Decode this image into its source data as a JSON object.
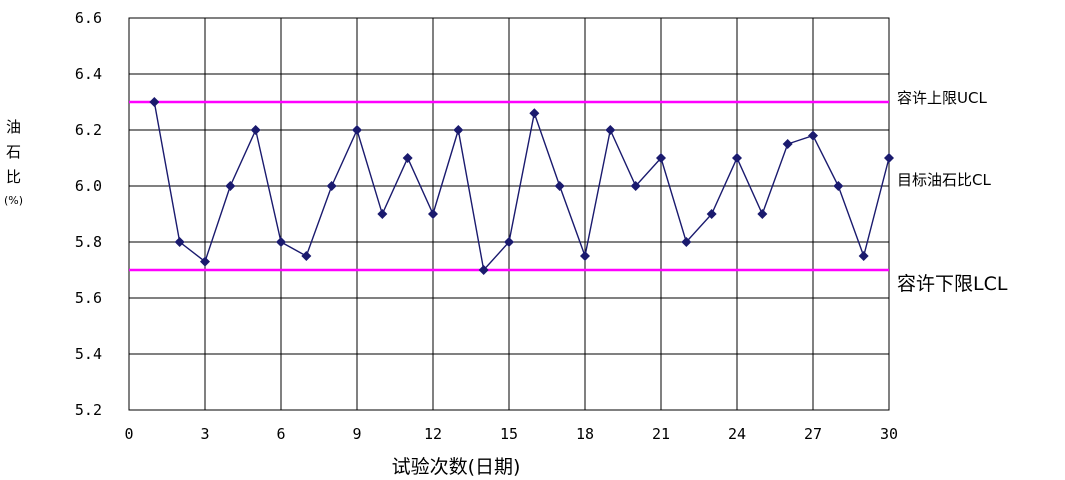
{
  "chart_data": {
    "type": "line",
    "xlabel": "试验次数(日期)",
    "ylabel": [
      "油",
      "石",
      "比",
      "(%)"
    ],
    "xlim": [
      0,
      30
    ],
    "ylim": [
      5.2,
      6.6
    ],
    "xticks": [
      "0",
      "3",
      "6",
      "9",
      "12",
      "15",
      "18",
      "21",
      "24",
      "27",
      "30"
    ],
    "yticks": [
      "5.2",
      "5.4",
      "5.6",
      "5.8",
      "6.0",
      "6.2",
      "6.4",
      "6.6"
    ],
    "grid": true,
    "series": [
      {
        "x": [
          1,
          2,
          3,
          4,
          5,
          6,
          7,
          8,
          9,
          10,
          11,
          12,
          13,
          14,
          15,
          16,
          17,
          18,
          19,
          20,
          21,
          22,
          23,
          24,
          25,
          26,
          27,
          28,
          29,
          30
        ],
        "values": [
          6.3,
          5.8,
          5.73,
          6.0,
          6.2,
          5.8,
          5.75,
          6.0,
          6.2,
          5.9,
          6.1,
          5.9,
          6.2,
          5.7,
          5.8,
          6.26,
          6.0,
          5.75,
          6.2,
          6.0,
          6.1,
          5.8,
          5.9,
          6.1,
          5.9,
          6.15,
          6.18,
          6.0,
          5.75,
          6.1
        ],
        "color": "#1a1a6e",
        "marker": "diamond"
      }
    ],
    "reference_lines": [
      {
        "label": "容许上限UCL",
        "y": 6.3,
        "color": "#ff00ff"
      },
      {
        "label": "目标油石比CL",
        "y": 6.0,
        "color": "none"
      },
      {
        "label": "容许下限LCL",
        "y": 5.7,
        "color": "#ff00ff"
      }
    ]
  }
}
